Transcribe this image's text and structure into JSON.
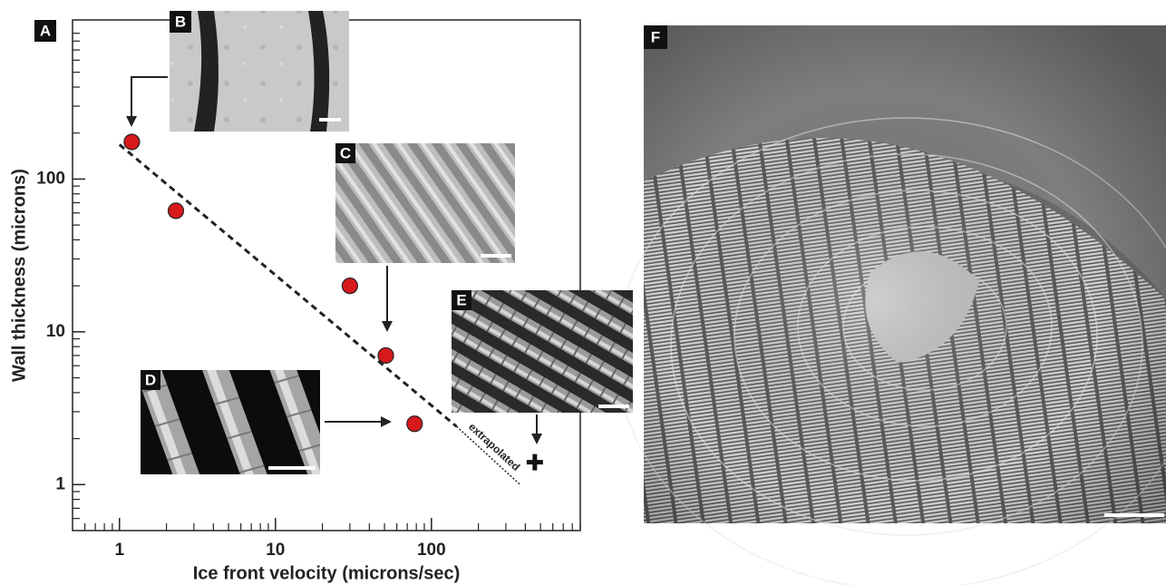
{
  "chart_data": {
    "type": "scatter",
    "xlabel": "Ice front velocity (microns/sec)",
    "ylabel": "Wall thickness (microns)",
    "log_x": true,
    "log_y": true,
    "xlim": [
      0.5,
      900
    ],
    "ylim": [
      0.5,
      1100
    ],
    "xticks": [
      1,
      10,
      100
    ],
    "yticks": [
      1,
      10,
      100
    ],
    "xminorticks": [
      0.6,
      0.7,
      0.8,
      0.9,
      2,
      3,
      4,
      5,
      6,
      7,
      8,
      9,
      20,
      30,
      40,
      50,
      60,
      70,
      80,
      90,
      200,
      300,
      400,
      500,
      600,
      700,
      800,
      900
    ],
    "yminorticks": [
      0.6,
      0.7,
      0.8,
      0.9,
      2,
      3,
      4,
      5,
      6,
      7,
      8,
      9,
      20,
      30,
      40,
      50,
      60,
      70,
      80,
      90,
      200,
      300,
      400,
      500,
      600,
      700,
      800,
      900
    ],
    "x": [
      1.2,
      2.3,
      30,
      51,
      78
    ],
    "series": [
      {
        "color": "#d7191c",
        "values": [
          175,
          62,
          20,
          7,
          2.5
        ]
      }
    ],
    "fit_line": {
      "x": [
        1,
        145
      ],
      "y": [
        168,
        2.4
      ]
    },
    "extrapolated_line": {
      "x": [
        145,
        370
      ],
      "y": [
        2.4,
        1.0
      ]
    },
    "extrapolated_point": {
      "x": 460,
      "y": 1.4
    },
    "annotation": "extrapolated"
  },
  "panel_labels": [
    "A",
    "B",
    "C",
    "D",
    "E",
    "F"
  ]
}
